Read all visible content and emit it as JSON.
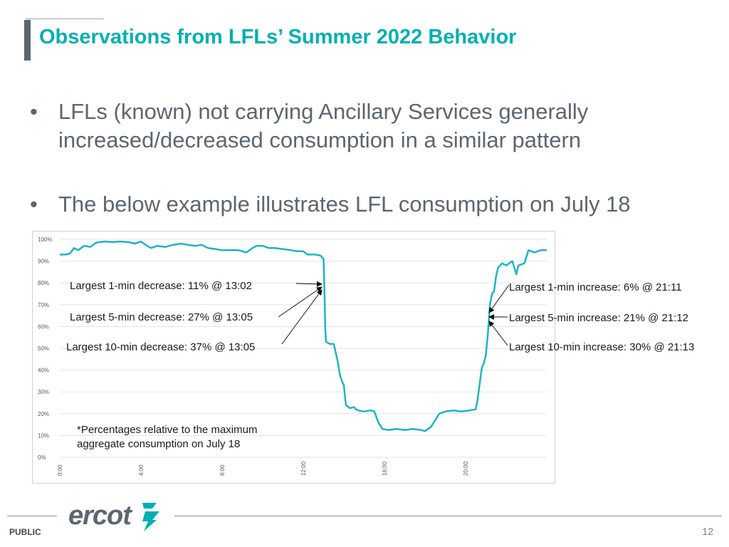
{
  "slide": {
    "title": "Observations from LFLs’ Summer 2022 Behavior",
    "bullets": [
      "LFLs (known) not carrying Ancillary Services generally",
      "increased/decreased consumption in a similar pattern",
      "The below example illustrates LFL consumption on July 18"
    ],
    "bullet_symbol": "•",
    "footer": {
      "label": "PUBLIC",
      "page": "12",
      "logo": "ercot"
    },
    "colors": {
      "title": "#00aeb0",
      "text": "#5b6670",
      "series": "#1fb3c4",
      "bar": "#5b6670"
    }
  },
  "chart_data": {
    "type": "line",
    "x_ticks": [
      "0:00",
      "4:00",
      "8:00",
      "12:00",
      "16:00",
      "20:00"
    ],
    "y_ticks": [
      "100%",
      "90%",
      "80%",
      "70%",
      "60%",
      "50%",
      "40%",
      "30%",
      "20%",
      "10%",
      "0%"
    ],
    "ylim": [
      0,
      100
    ],
    "xlim_hours": [
      0,
      24
    ],
    "grid": true,
    "series": [
      {
        "color": "#1fb3c4",
        "points": [
          [
            0.0,
            93
          ],
          [
            0.3,
            93
          ],
          [
            0.5,
            93.5
          ],
          [
            0.7,
            96
          ],
          [
            0.9,
            95
          ],
          [
            1.2,
            97
          ],
          [
            1.5,
            96.5
          ],
          [
            1.8,
            98.5
          ],
          [
            2.2,
            99
          ],
          [
            2.6,
            98.8
          ],
          [
            3.0,
            99
          ],
          [
            3.4,
            98.7
          ],
          [
            3.7,
            98
          ],
          [
            4.0,
            99
          ],
          [
            4.3,
            97
          ],
          [
            4.5,
            96
          ],
          [
            4.8,
            97
          ],
          [
            5.2,
            96.5
          ],
          [
            5.6,
            97.5
          ],
          [
            6.0,
            98
          ],
          [
            6.3,
            97.5
          ],
          [
            6.7,
            97
          ],
          [
            7.0,
            97.5
          ],
          [
            7.3,
            96
          ],
          [
            7.7,
            95.5
          ],
          [
            8.0,
            95
          ],
          [
            8.4,
            95
          ],
          [
            8.8,
            95
          ],
          [
            9.2,
            94
          ],
          [
            9.5,
            96
          ],
          [
            9.7,
            97
          ],
          [
            10.0,
            97
          ],
          [
            10.3,
            96
          ],
          [
            10.6,
            96
          ],
          [
            11.0,
            95.5
          ],
          [
            11.4,
            95
          ],
          [
            11.7,
            94.5
          ],
          [
            12.0,
            94.5
          ],
          [
            12.2,
            93
          ],
          [
            12.6,
            93
          ],
          [
            12.85,
            92.5
          ],
          [
            13.0,
            91
          ],
          [
            13.03,
            81
          ],
          [
            13.06,
            70
          ],
          [
            13.08,
            60
          ],
          [
            13.12,
            53
          ],
          [
            13.3,
            52
          ],
          [
            13.5,
            52
          ],
          [
            13.6,
            48
          ],
          [
            13.7,
            44
          ],
          [
            13.8,
            38
          ],
          [
            13.9,
            35
          ],
          [
            14.0,
            33
          ],
          [
            14.1,
            24
          ],
          [
            14.3,
            22.5
          ],
          [
            14.5,
            23
          ],
          [
            14.6,
            22
          ],
          [
            14.7,
            21.5
          ],
          [
            15.0,
            21
          ],
          [
            15.3,
            21.5
          ],
          [
            15.5,
            21
          ],
          [
            15.7,
            16
          ],
          [
            15.9,
            13
          ],
          [
            16.2,
            12.5
          ],
          [
            16.6,
            13
          ],
          [
            17.0,
            12.5
          ],
          [
            17.4,
            13
          ],
          [
            17.8,
            12.5
          ],
          [
            18.0,
            12
          ],
          [
            18.3,
            14
          ],
          [
            18.5,
            17
          ],
          [
            18.7,
            20
          ],
          [
            19.0,
            21
          ],
          [
            19.4,
            21.5
          ],
          [
            19.8,
            21
          ],
          [
            20.2,
            21.5
          ],
          [
            20.5,
            22
          ],
          [
            20.6,
            27
          ],
          [
            20.7,
            34
          ],
          [
            20.8,
            41
          ],
          [
            20.9,
            43
          ],
          [
            21.0,
            47
          ],
          [
            21.1,
            57
          ],
          [
            21.2,
            70
          ],
          [
            21.3,
            75
          ],
          [
            21.4,
            76
          ],
          [
            21.5,
            83
          ],
          [
            21.6,
            87
          ],
          [
            21.8,
            89
          ],
          [
            22.0,
            88
          ],
          [
            22.3,
            90
          ],
          [
            22.5,
            84
          ],
          [
            22.6,
            88
          ],
          [
            22.9,
            89
          ],
          [
            23.1,
            95
          ],
          [
            23.4,
            94
          ],
          [
            23.7,
            95
          ],
          [
            24.0,
            95
          ]
        ]
      }
    ],
    "annotations": {
      "left": [
        "Largest 1-min decrease: 11% @ 13:02",
        "Largest 5-min decrease: 27% @ 13:05",
        "Largest 10-min decrease: 37% @ 13:05"
      ],
      "right": [
        "Largest 1-min increase: 6% @ 21:11",
        "Largest 5-min increase: 21% @ 21:12",
        "Largest 10-min increase: 30% @ 21:13"
      ],
      "note": [
        "*Percentages relative to the maximum",
        "aggregate consumption on July 18"
      ]
    }
  }
}
